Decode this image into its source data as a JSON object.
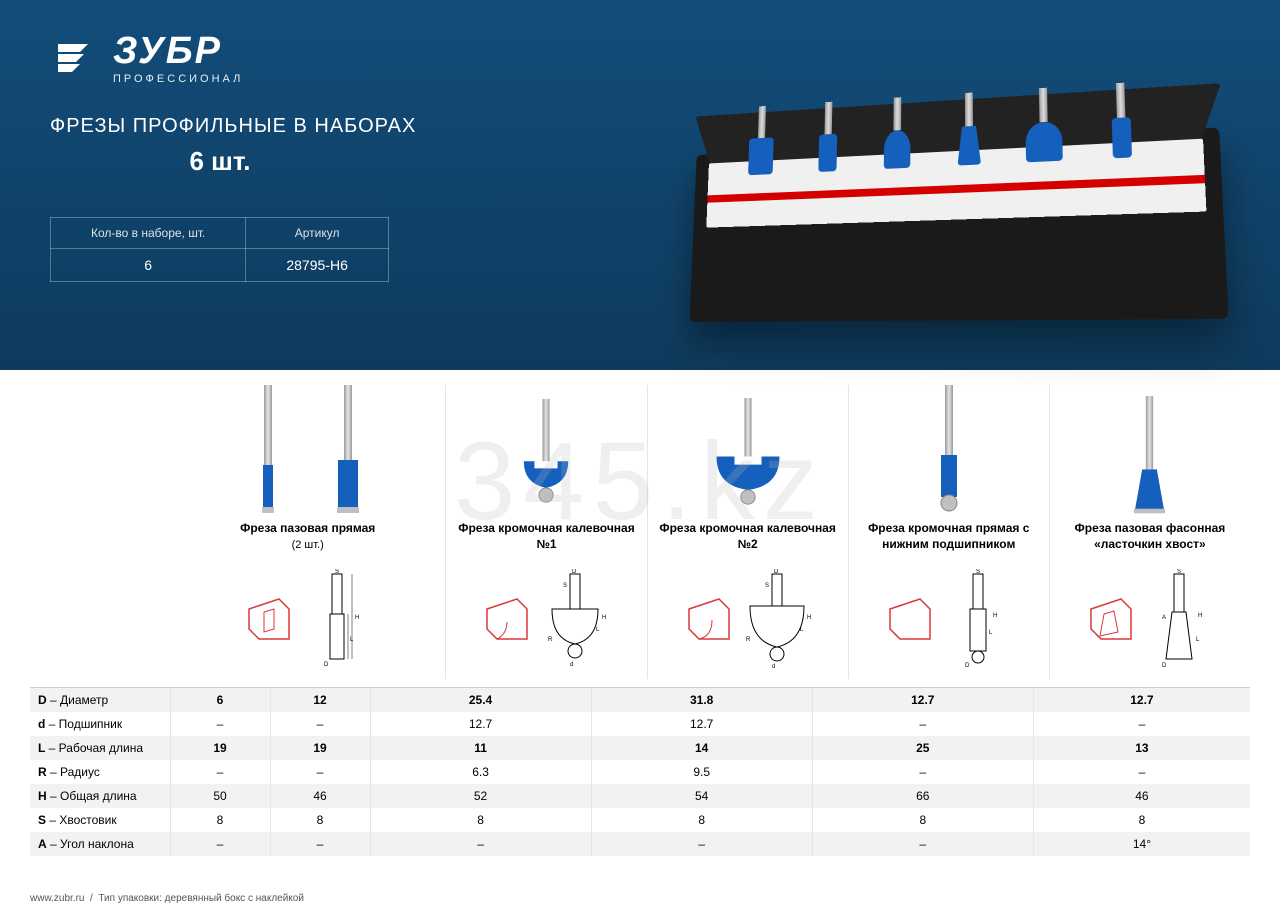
{
  "brand": {
    "name": "ЗУБР",
    "tagline": "ПРОФЕССИОНАЛ"
  },
  "header": {
    "title": "ФРЕЗЫ ПРОФИЛЬНЫЕ В НАБОРАХ",
    "count": "6 шт."
  },
  "meta": {
    "qty_label": "Кол-во в наборе, шт.",
    "qty_value": "6",
    "sku_label": "Артикул",
    "sku_value": "28795-H6"
  },
  "colors": {
    "header_bg_top": "#134d7a",
    "header_bg_bottom": "#0d3a5c",
    "bit_blue": "#1560bd",
    "profile_red": "#d93838",
    "shank_grey": "#b8b8b8",
    "row_alt": "#f2f2f2",
    "divider": "#e5e5e5"
  },
  "bits": [
    {
      "name": "Фреза пазовая прямая",
      "sub": "(2 шт.)",
      "dual": true
    },
    {
      "name": "Фреза кромочная калевочная №1",
      "sub": ""
    },
    {
      "name": "Фреза кромочная калевочная №2",
      "sub": ""
    },
    {
      "name": "Фреза кромочная прямая с нижним подшипником",
      "sub": ""
    },
    {
      "name": "Фреза пазовая фасонная «ласточкин хвост»",
      "sub": ""
    }
  ],
  "spec_labels": [
    {
      "k": "D",
      "t": "Диаметр"
    },
    {
      "k": "d",
      "t": "Подшипник"
    },
    {
      "k": "L",
      "t": "Рабочая длина"
    },
    {
      "k": "R",
      "t": "Радиус"
    },
    {
      "k": "H",
      "t": "Общая длина"
    },
    {
      "k": "S",
      "t": "Хвостовик"
    },
    {
      "k": "A",
      "t": "Угол наклона"
    }
  ],
  "specs": {
    "D": [
      "6",
      "12",
      "25.4",
      "31.8",
      "12.7",
      "12.7"
    ],
    "d": [
      "–",
      "–",
      "12.7",
      "12.7",
      "–",
      "–"
    ],
    "L": [
      "19",
      "19",
      "11",
      "14",
      "25",
      "13"
    ],
    "R": [
      "–",
      "–",
      "6.3",
      "9.5",
      "–",
      "–"
    ],
    "H": [
      "50",
      "46",
      "52",
      "54",
      "66",
      "46"
    ],
    "S": [
      "8",
      "8",
      "8",
      "8",
      "8",
      "8"
    ],
    "A": [
      "–",
      "–",
      "–",
      "–",
      "–",
      "14°"
    ]
  },
  "footer": {
    "url": "www.zubr.ru",
    "packaging": "Тип упаковки: деревянный бокс с наклейкой"
  },
  "watermark": "345.kz"
}
